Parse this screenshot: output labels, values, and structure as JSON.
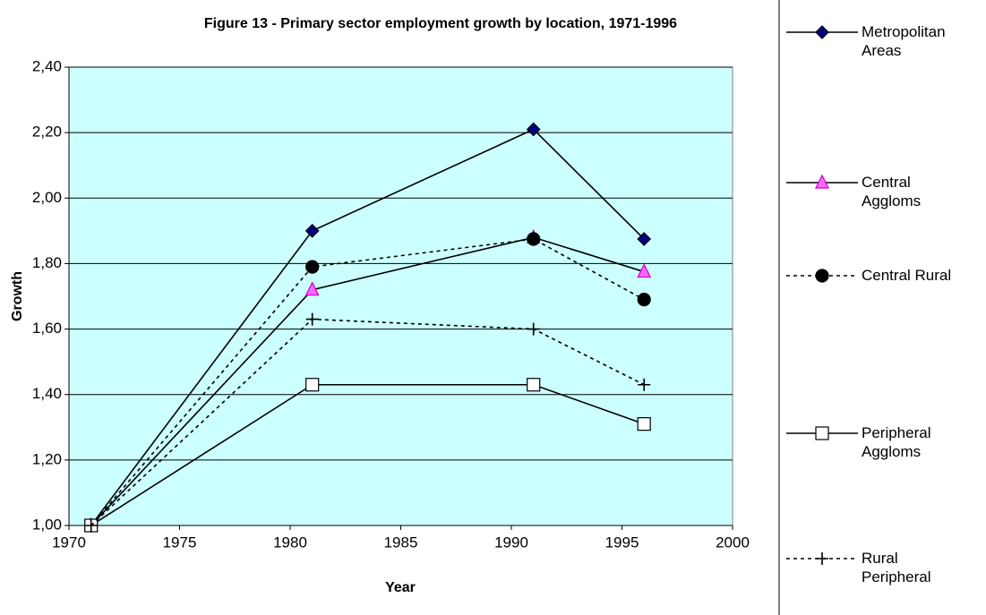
{
  "chart_data": {
    "type": "line",
    "title": "Figure 13 - Primary sector employment growth by location, 1971-1996",
    "x_label": "Year",
    "y_label": "Growth",
    "x": [
      1971,
      1981,
      1991,
      1996
    ],
    "xlim": [
      1970,
      2000
    ],
    "xticks": [
      1970,
      1975,
      1980,
      1985,
      1990,
      1995,
      2000
    ],
    "ylim": [
      1.0,
      2.4
    ],
    "yticks": [
      {
        "value": 1.0,
        "label": "1,00"
      },
      {
        "value": 1.2,
        "label": "1,20"
      },
      {
        "value": 1.4,
        "label": "1,40"
      },
      {
        "value": 1.6,
        "label": "1,60"
      },
      {
        "value": 1.8,
        "label": "1,80"
      },
      {
        "value": 2.0,
        "label": "2,00"
      },
      {
        "value": 2.2,
        "label": "2,20"
      },
      {
        "value": 2.4,
        "label": "2,40"
      }
    ],
    "grid": true,
    "background": "#ccffff",
    "legend": "right",
    "series": [
      {
        "name": "Metropolitan Areas",
        "color": "#000000",
        "dashed": false,
        "marker": "diamond",
        "marker_color": "#000080",
        "values": [
          1.0,
          1.9,
          2.21,
          1.875
        ]
      },
      {
        "name": "Central Aggloms",
        "color": "#000000",
        "dashed": false,
        "marker": "triangle",
        "marker_color": "#ff66ff",
        "values": [
          1.0,
          1.72,
          1.88,
          1.775
        ]
      },
      {
        "name": "Central Rural",
        "color": "#000000",
        "dashed": true,
        "marker": "circle",
        "marker_color": "#000000",
        "values": [
          1.0,
          1.79,
          1.875,
          1.69
        ]
      },
      {
        "name": "Peripheral Aggloms",
        "color": "#000000",
        "dashed": false,
        "marker": "square",
        "marker_color": "#ffffff",
        "values": [
          1.0,
          1.43,
          1.43,
          1.31
        ]
      },
      {
        "name": "Rural Peripheral",
        "color": "#000000",
        "dashed": true,
        "marker": "plus",
        "marker_color": "#000000",
        "values": [
          1.0,
          1.63,
          1.6,
          1.43
        ]
      }
    ]
  }
}
